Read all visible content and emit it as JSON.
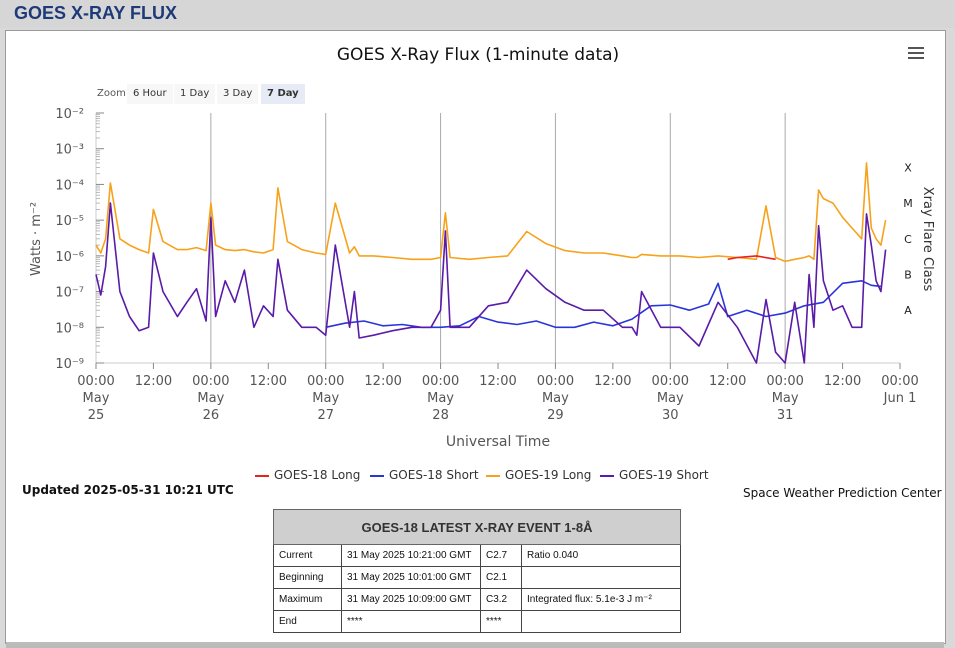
{
  "header": {
    "title": "GOES X-RAY FLUX"
  },
  "zoom": {
    "label": "Zoom",
    "buttons": [
      "6 Hour",
      "1 Day",
      "3 Day",
      "7 Day"
    ],
    "active": "7 Day"
  },
  "updated": "Updated 2025-05-31 10:21 UTC",
  "credit": "Space Weather Prediction Center",
  "chart_data": {
    "type": "line",
    "title": "GOES X-Ray Flux (1-minute data)",
    "xlabel": "Universal Time",
    "ylabel": "Watts · m⁻²",
    "y2label": "Xray Flare Class",
    "yscale": "log",
    "ylim": [
      1e-09,
      0.01
    ],
    "xlim": [
      "2025-05-25T00:00Z",
      "2025-06-01T00:00Z"
    ],
    "yticks": [
      "10⁻²",
      "10⁻³",
      "10⁻⁴",
      "10⁻⁵",
      "10⁻⁶",
      "10⁻⁷",
      "10⁻⁸",
      "10⁻⁹"
    ],
    "flare_classes": [
      "X",
      "M",
      "C",
      "B",
      "A"
    ],
    "xticks": [
      {
        "t": "00:00",
        "d": "May\n25"
      },
      {
        "t": "12:00",
        "d": ""
      },
      {
        "t": "00:00",
        "d": "May\n26"
      },
      {
        "t": "12:00",
        "d": ""
      },
      {
        "t": "00:00",
        "d": "May\n27"
      },
      {
        "t": "12:00",
        "d": ""
      },
      {
        "t": "00:00",
        "d": "May\n28"
      },
      {
        "t": "12:00",
        "d": ""
      },
      {
        "t": "00:00",
        "d": "May\n29"
      },
      {
        "t": "12:00",
        "d": ""
      },
      {
        "t": "00:00",
        "d": "May\n30"
      },
      {
        "t": "12:00",
        "d": ""
      },
      {
        "t": "00:00",
        "d": "May\n31"
      },
      {
        "t": "12:00",
        "d": ""
      },
      {
        "t": "00:00",
        "d": "Jun 1"
      }
    ],
    "grid": "vertical at day boundaries",
    "legend_position": "bottom",
    "series": [
      {
        "name": "GOES-18 Long",
        "color": "#e8211f",
        "x": [
          132,
          134,
          138,
          142
        ],
        "y": [
          8e-07,
          9e-07,
          1e-06,
          8e-07
        ]
      },
      {
        "name": "GOES-18 Short",
        "color": "#2a35d9",
        "x": [
          48,
          52,
          56,
          60,
          64,
          68,
          72,
          76,
          80,
          84,
          88,
          92,
          96,
          100,
          104,
          108,
          112,
          116,
          120,
          124,
          128,
          130,
          132,
          136,
          140,
          144,
          148,
          152,
          156,
          160,
          162,
          164
        ],
        "y": [
          1e-08,
          1.3e-08,
          1.5e-08,
          1.1e-08,
          1.2e-08,
          1e-08,
          1e-08,
          1.1e-08,
          2e-08,
          1.4e-08,
          1.2e-08,
          1.5e-08,
          1e-08,
          1e-08,
          1.4e-08,
          1.1e-08,
          1.7e-08,
          4e-08,
          4.2e-08,
          3e-08,
          4.5e-08,
          1.7e-07,
          2e-08,
          3e-08,
          2e-08,
          2.5e-08,
          4e-08,
          5e-08,
          1.7e-07,
          2e-07,
          1.5e-07,
          1.4e-07
        ]
      },
      {
        "name": "GOES-19 Long",
        "color": "#f7a21b",
        "x": [
          0,
          1,
          2,
          3,
          5,
          7,
          9,
          11,
          12,
          14,
          17,
          19,
          21,
          23,
          24,
          25,
          27,
          29,
          31,
          33,
          35,
          37,
          38,
          40,
          43,
          46,
          48,
          50,
          53,
          54,
          55,
          58,
          62,
          66,
          70,
          72,
          73,
          74,
          78,
          82,
          86,
          90,
          94,
          98,
          102,
          106,
          110,
          112,
          113,
          114,
          118,
          122,
          126,
          130,
          134,
          138,
          140,
          142,
          144,
          146,
          148,
          149,
          150,
          151,
          152,
          154,
          156,
          158,
          160,
          161,
          162,
          163,
          164,
          165
        ],
        "y": [
          2e-06,
          1.2e-06,
          3e-06,
          0.00011,
          3e-06,
          2e-06,
          1.5e-06,
          1.2e-06,
          2e-05,
          2.5e-06,
          1.5e-06,
          1.5e-06,
          1.7e-06,
          1.4e-06,
          3e-05,
          2e-06,
          1.5e-06,
          1.4e-06,
          1.5e-06,
          1.3e-06,
          1.2e-06,
          1.5e-06,
          8e-05,
          2.5e-06,
          1.5e-06,
          1.2e-06,
          1.1e-06,
          3e-05,
          1.2e-06,
          1.8e-06,
          1e-06,
          1e-06,
          9e-07,
          8e-07,
          8e-07,
          9e-07,
          1.6e-05,
          9e-07,
          8e-07,
          9e-07,
          1e-06,
          4.8e-06,
          2.2e-06,
          1.4e-06,
          1.2e-06,
          1.2e-06,
          1e-06,
          9e-07,
          9e-07,
          1.1e-06,
          1e-06,
          1e-06,
          9e-07,
          1e-06,
          9e-07,
          8e-07,
          2.5e-05,
          9e-07,
          7e-07,
          8e-07,
          9e-07,
          1e-06,
          8e-07,
          7e-05,
          4e-05,
          3e-05,
          1.2e-05,
          6e-06,
          3e-06,
          0.0004,
          6e-06,
          3e-06,
          2e-06,
          1e-05
        ]
      },
      {
        "name": "GOES-19 Short",
        "color": "#5a1ba8",
        "x": [
          0,
          1,
          2,
          3,
          5,
          7,
          9,
          11,
          12,
          14,
          17,
          19,
          21,
          23,
          24,
          25,
          27,
          29,
          31,
          33,
          35,
          37,
          38,
          40,
          43,
          46,
          48,
          50,
          53,
          54,
          55,
          58,
          62,
          66,
          70,
          72,
          73,
          74,
          78,
          82,
          86,
          90,
          94,
          98,
          102,
          106,
          110,
          112,
          113,
          114,
          118,
          122,
          126,
          130,
          134,
          138,
          140,
          142,
          144,
          146,
          148,
          149,
          150,
          151,
          152,
          154,
          156,
          158,
          160,
          161,
          162,
          163,
          164,
          165
        ],
        "y": [
          3e-07,
          8e-08,
          5e-07,
          3e-05,
          1e-07,
          2e-08,
          8e-09,
          1e-08,
          1.2e-06,
          1e-07,
          2e-08,
          5e-08,
          1.2e-07,
          1.5e-08,
          1.2e-05,
          2e-08,
          2e-07,
          5e-08,
          4e-07,
          1e-08,
          4e-08,
          2e-08,
          8e-07,
          3e-08,
          1e-08,
          1e-08,
          6e-09,
          2e-06,
          1e-08,
          1e-07,
          5e-09,
          6e-09,
          8e-09,
          1e-08,
          1e-08,
          3e-08,
          5e-06,
          1e-08,
          1e-08,
          4e-08,
          5e-08,
          4e-07,
          1.2e-07,
          5e-08,
          3e-08,
          3e-08,
          1e-08,
          1e-08,
          6e-09,
          1e-07,
          1e-08,
          1e-08,
          3e-09,
          5e-08,
          1e-08,
          1e-09,
          6e-08,
          2e-09,
          1e-09,
          5e-08,
          1e-09,
          3e-07,
          1e-08,
          7e-06,
          2e-07,
          3e-08,
          4e-08,
          1e-08,
          1e-08,
          1.5e-05,
          2e-06,
          2e-07,
          1e-07,
          1.5e-06
        ]
      }
    ]
  },
  "event_table": {
    "title": "GOES-18 LATEST X-RAY EVENT 1-8Å",
    "rows": [
      {
        "label": "Current",
        "time": "31 May 2025 10:21:00 GMT",
        "class": "C2.7",
        "note": "Ratio 0.040"
      },
      {
        "label": "Beginning",
        "time": "31 May 2025 10:01:00 GMT",
        "class": "C2.1",
        "note": ""
      },
      {
        "label": "Maximum",
        "time": "31 May 2025 10:09:00 GMT",
        "class": "C3.2",
        "note": "Integrated flux: 5.1e-3 J m⁻²"
      },
      {
        "label": "End",
        "time": "****",
        "class": "****",
        "note": ""
      }
    ]
  }
}
